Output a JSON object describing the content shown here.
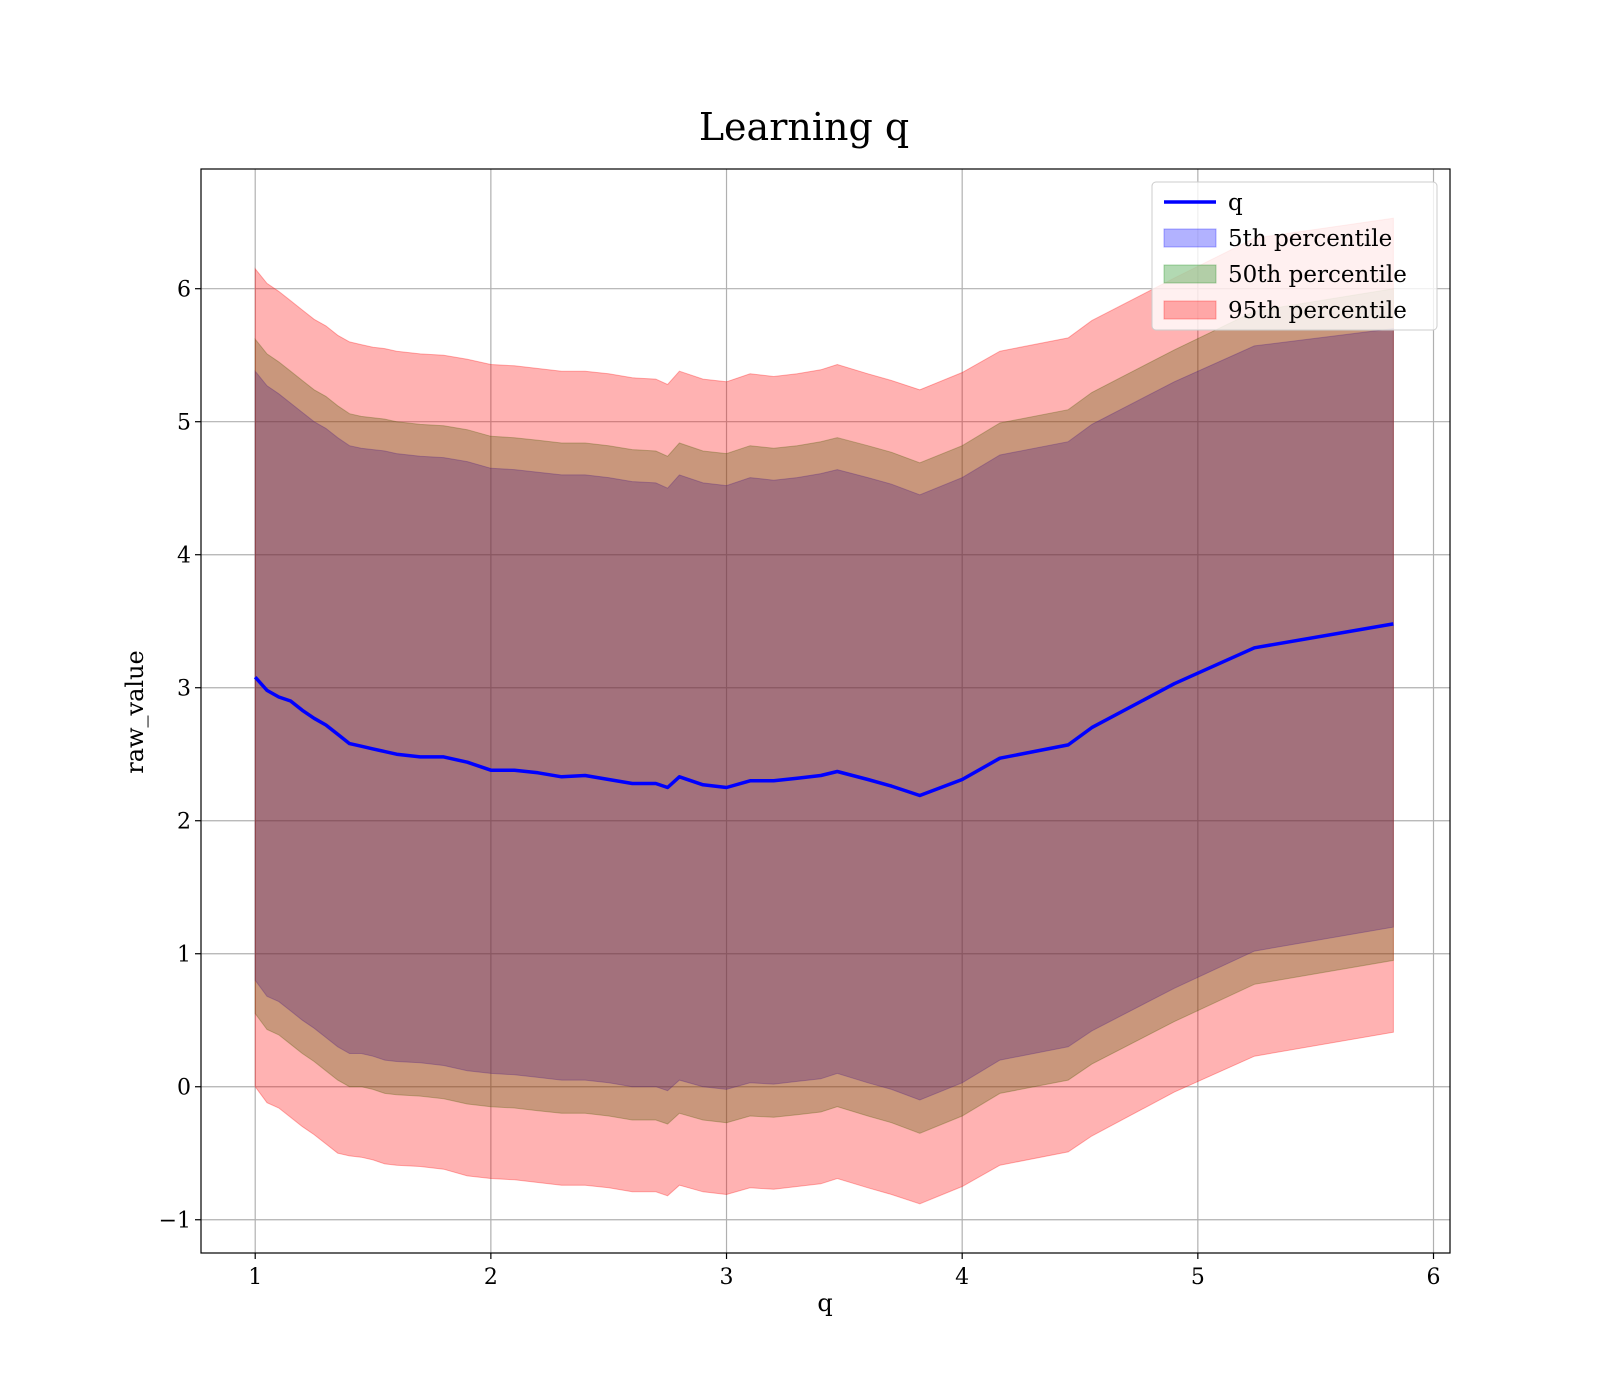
{
  "chart_data": {
    "type": "area",
    "title": "Learning q",
    "xlabel": "q",
    "ylabel": "raw_value",
    "xlim": [
      0.77,
      6.07
    ],
    "ylim": [
      -1.25,
      6.9
    ],
    "xticks": [
      1,
      2,
      3,
      4,
      5,
      6
    ],
    "yticks": [
      -1,
      0,
      1,
      2,
      3,
      4,
      5,
      6
    ],
    "xtick_labels": [
      "1",
      "2",
      "3",
      "4",
      "5",
      "6"
    ],
    "ytick_labels": [
      "−1",
      "0",
      "1",
      "2",
      "3",
      "4",
      "5",
      "6"
    ],
    "grid": true,
    "legend_position": "top-right",
    "legend": [
      {
        "label": "q",
        "kind": "line",
        "color": "#0000ff"
      },
      {
        "label": "5th percentile",
        "kind": "patch",
        "color": "#0000ff"
      },
      {
        "label": "50th percentile",
        "kind": "patch",
        "color": "#008000"
      },
      {
        "label": "95th percentile",
        "kind": "patch",
        "color": "#ff0000"
      }
    ],
    "x": [
      1.0,
      1.05,
      1.1,
      1.15,
      1.2,
      1.25,
      1.3,
      1.35,
      1.4,
      1.45,
      1.5,
      1.55,
      1.6,
      1.7,
      1.8,
      1.9,
      2.0,
      2.1,
      2.2,
      2.3,
      2.4,
      2.5,
      2.6,
      2.7,
      2.75,
      2.8,
      2.9,
      3.0,
      3.1,
      3.2,
      3.3,
      3.4,
      3.47,
      3.6,
      3.7,
      3.82,
      4.0,
      4.16,
      4.45,
      4.55,
      4.9,
      5.24,
      5.83
    ],
    "median": [
      3.08,
      2.98,
      2.93,
      2.9,
      2.83,
      2.77,
      2.72,
      2.65,
      2.58,
      2.56,
      2.54,
      2.52,
      2.5,
      2.48,
      2.48,
      2.44,
      2.38,
      2.38,
      2.36,
      2.33,
      2.34,
      2.31,
      2.28,
      2.28,
      2.25,
      2.33,
      2.27,
      2.25,
      2.3,
      2.3,
      2.32,
      2.34,
      2.37,
      2.31,
      2.26,
      2.19,
      2.31,
      2.47,
      2.57,
      2.7,
      3.03,
      3.3,
      3.48
    ],
    "series": [
      {
        "name": "5th percentile",
        "color": "#0000ff",
        "alpha": 0.3,
        "lower": [
          0.8,
          0.68,
          0.64,
          0.57,
          0.5,
          0.44,
          0.37,
          0.3,
          0.25,
          0.25,
          0.23,
          0.2,
          0.19,
          0.18,
          0.16,
          0.12,
          0.1,
          0.09,
          0.07,
          0.05,
          0.05,
          0.03,
          0.0,
          0.0,
          -0.03,
          0.05,
          0.0,
          -0.02,
          0.03,
          0.02,
          0.04,
          0.06,
          0.1,
          0.03,
          -0.02,
          -0.1,
          0.03,
          0.2,
          0.3,
          0.42,
          0.74,
          1.02,
          1.2
        ],
        "upper": [
          5.38,
          5.27,
          5.21,
          5.14,
          5.07,
          5.0,
          4.95,
          4.88,
          4.82,
          4.8,
          4.79,
          4.78,
          4.76,
          4.74,
          4.73,
          4.7,
          4.65,
          4.64,
          4.62,
          4.6,
          4.6,
          4.58,
          4.55,
          4.54,
          4.5,
          4.6,
          4.54,
          4.52,
          4.58,
          4.56,
          4.58,
          4.61,
          4.64,
          4.58,
          4.53,
          4.45,
          4.58,
          4.75,
          4.85,
          4.98,
          5.3,
          5.57,
          5.7
        ]
      },
      {
        "name": "50th percentile",
        "color": "#008000",
        "alpha": 0.3,
        "lower": [
          0.55,
          0.43,
          0.39,
          0.32,
          0.25,
          0.19,
          0.12,
          0.05,
          0.0,
          0.0,
          -0.02,
          -0.05,
          -0.06,
          -0.07,
          -0.09,
          -0.13,
          -0.15,
          -0.16,
          -0.18,
          -0.2,
          -0.2,
          -0.22,
          -0.25,
          -0.25,
          -0.28,
          -0.2,
          -0.25,
          -0.27,
          -0.22,
          -0.23,
          -0.21,
          -0.19,
          -0.15,
          -0.22,
          -0.27,
          -0.35,
          -0.22,
          -0.05,
          0.05,
          0.17,
          0.49,
          0.77,
          0.95
        ],
        "upper": [
          5.62,
          5.51,
          5.45,
          5.38,
          5.31,
          5.24,
          5.19,
          5.12,
          5.06,
          5.04,
          5.03,
          5.02,
          5.0,
          4.98,
          4.97,
          4.94,
          4.89,
          4.88,
          4.86,
          4.84,
          4.84,
          4.82,
          4.79,
          4.78,
          4.74,
          4.84,
          4.78,
          4.76,
          4.82,
          4.8,
          4.82,
          4.85,
          4.88,
          4.82,
          4.77,
          4.69,
          4.82,
          4.99,
          5.09,
          5.22,
          5.54,
          5.83,
          6.0
        ]
      },
      {
        "name": "95th percentile",
        "color": "#ff0000",
        "alpha": 0.3,
        "lower": [
          0.0,
          -0.12,
          -0.16,
          -0.23,
          -0.3,
          -0.36,
          -0.43,
          -0.5,
          -0.52,
          -0.53,
          -0.55,
          -0.58,
          -0.59,
          -0.6,
          -0.62,
          -0.67,
          -0.69,
          -0.7,
          -0.72,
          -0.74,
          -0.74,
          -0.76,
          -0.79,
          -0.79,
          -0.82,
          -0.74,
          -0.79,
          -0.81,
          -0.76,
          -0.77,
          -0.75,
          -0.73,
          -0.69,
          -0.76,
          -0.81,
          -0.88,
          -0.75,
          -0.59,
          -0.49,
          -0.37,
          -0.04,
          0.23,
          0.41
        ],
        "upper": [
          6.15,
          6.04,
          5.98,
          5.91,
          5.84,
          5.77,
          5.72,
          5.65,
          5.6,
          5.58,
          5.56,
          5.55,
          5.53,
          5.51,
          5.5,
          5.47,
          5.43,
          5.42,
          5.4,
          5.38,
          5.38,
          5.36,
          5.33,
          5.32,
          5.28,
          5.38,
          5.32,
          5.3,
          5.36,
          5.34,
          5.36,
          5.39,
          5.43,
          5.36,
          5.31,
          5.24,
          5.37,
          5.53,
          5.63,
          5.76,
          6.08,
          6.38,
          6.53
        ]
      }
    ]
  }
}
